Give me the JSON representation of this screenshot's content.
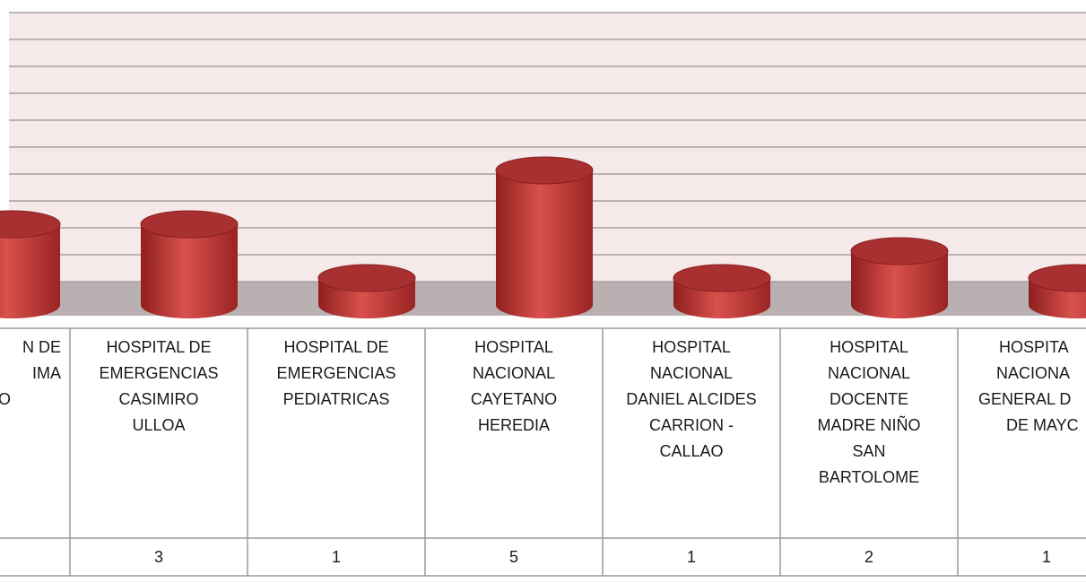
{
  "chart_data": {
    "type": "cylinder",
    "categories": [
      [
        "N DE",
        "IMA",
        "O"
      ],
      [
        "HOSPITAL DE",
        "EMERGENCIAS",
        "CASIMIRO",
        "ULLOA"
      ],
      [
        "HOSPITAL DE",
        "EMERGENCIAS",
        "PEDIATRICAS"
      ],
      [
        "HOSPITAL",
        "NACIONAL",
        "CAYETANO",
        "HEREDIA"
      ],
      [
        "HOSPITAL",
        "NACIONAL",
        "DANIEL ALCIDES",
        "CARRION -",
        "CALLAO"
      ],
      [
        "HOSPITAL",
        "NACIONAL",
        "DOCENTE",
        "MADRE NIÑO",
        "SAN",
        "BARTOLOME"
      ],
      [
        "HOSPITA",
        "NACIONA",
        "GENERAL D",
        "DE MAYC"
      ]
    ],
    "values": [
      3,
      3,
      1,
      5,
      1,
      2,
      1
    ],
    "value_labels": [
      null,
      "3",
      "1",
      "5",
      "1",
      "2",
      "1"
    ],
    "color": "#c0392b",
    "ylim": [
      0,
      10
    ],
    "yticks": [
      0,
      1,
      2,
      3,
      4,
      5,
      6,
      7,
      8,
      9,
      10
    ],
    "grid": true
  }
}
